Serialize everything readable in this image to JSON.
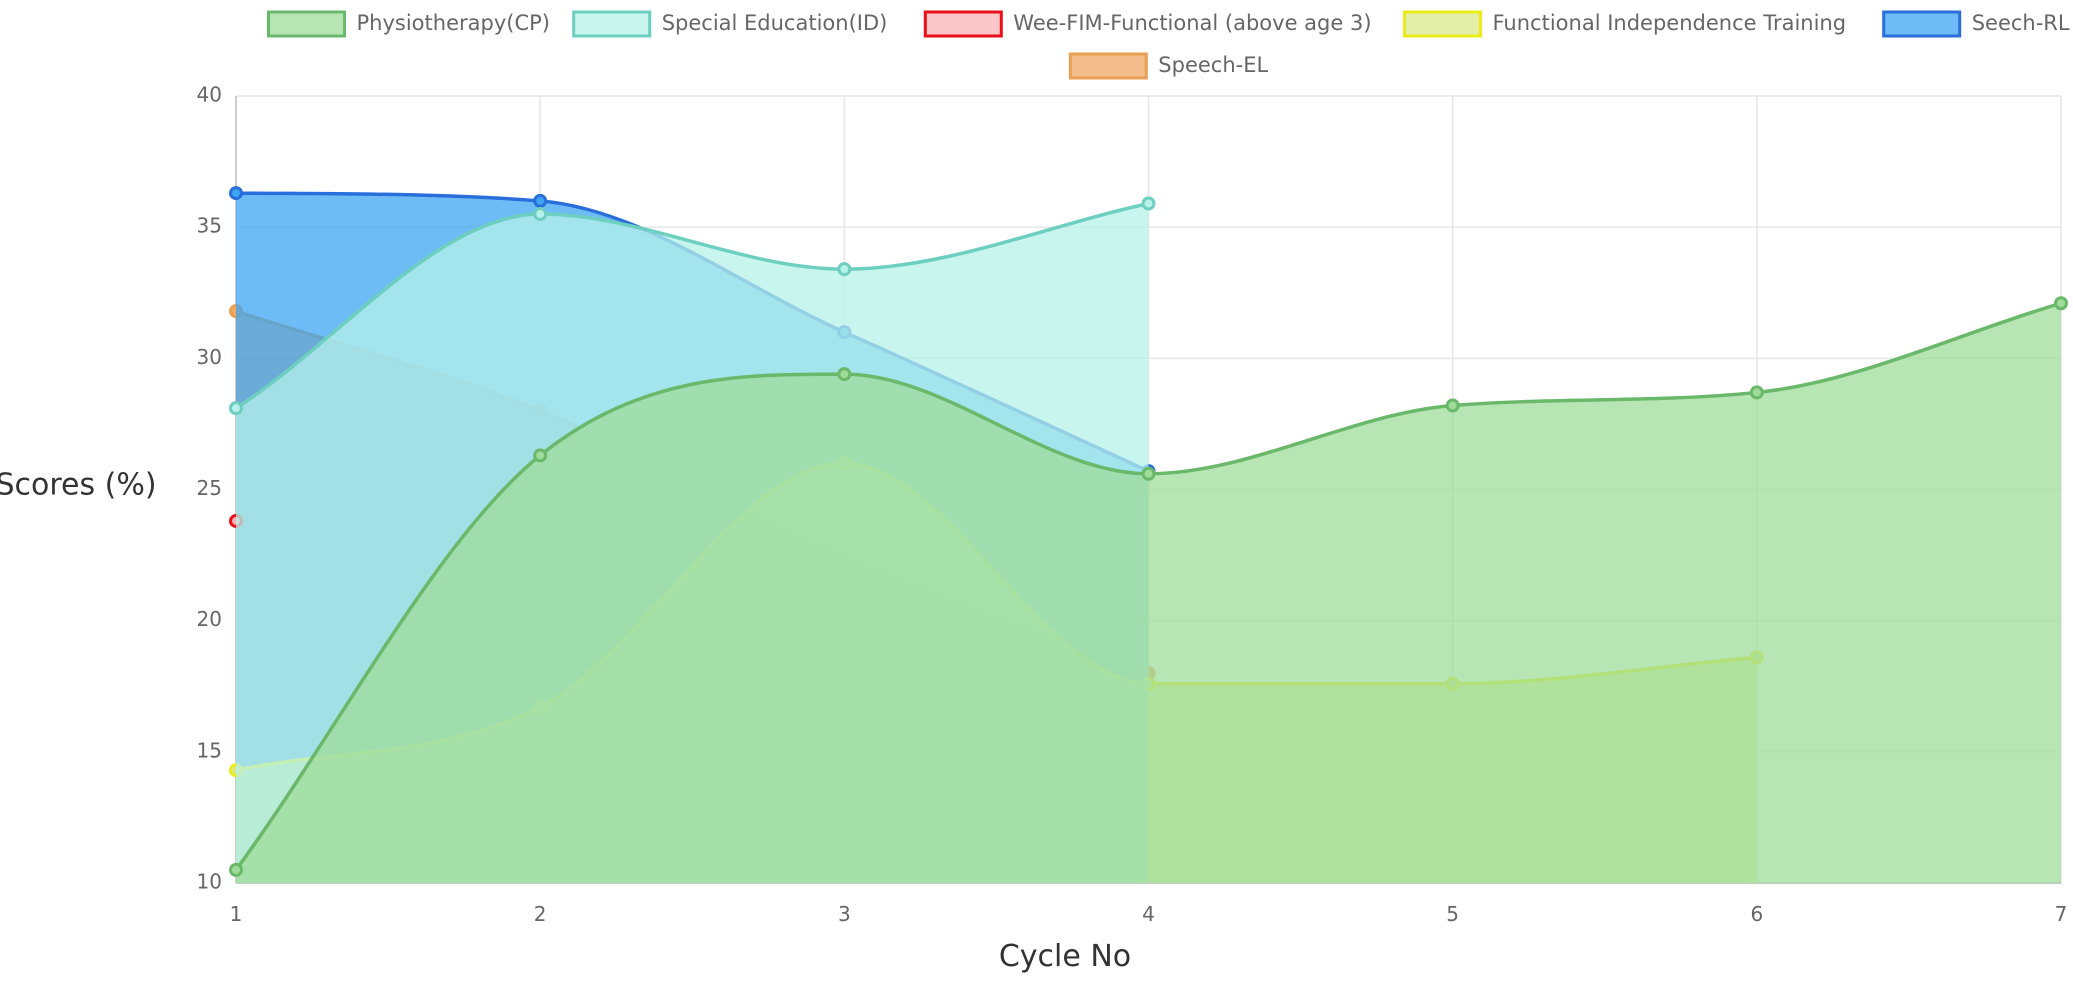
{
  "chart_data": {
    "type": "area",
    "xlabel": "Cycle No",
    "ylabel": "Scores (%)",
    "x": [
      1,
      2,
      3,
      4,
      5,
      6,
      7
    ],
    "xlim": [
      1,
      7
    ],
    "ylim": [
      10,
      40
    ],
    "yticks": [
      10,
      15,
      20,
      25,
      30,
      35,
      40
    ],
    "grid": true,
    "legend_position": "top",
    "series": [
      {
        "name": "Physiotherapy(CP)",
        "x": [
          1,
          2,
          3,
          4,
          5,
          6,
          7
        ],
        "values": [
          10.5,
          26.3,
          29.4,
          25.6,
          28.2,
          28.7,
          32.1
        ],
        "line_color": "#6ab86a",
        "fill_color": "#9fdc99"
      },
      {
        "name": "Special Education(ID)",
        "x": [
          1,
          2,
          3,
          4
        ],
        "values": [
          28.1,
          35.5,
          33.4,
          35.9
        ],
        "line_color": "#6dcfc0",
        "fill_color": "#b7f2ea"
      },
      {
        "name": "Wee-FIM-Functional (above age 3)",
        "x": [
          1
        ],
        "values": [
          23.8
        ],
        "line_color": "#e8101a",
        "fill_color": "#f7b4b4"
      },
      {
        "name": "Functional Independence Training",
        "x": [
          1,
          2,
          3,
          4,
          5,
          6
        ],
        "values": [
          14.3,
          16.7,
          26.0,
          17.6,
          17.6,
          18.6
        ],
        "line_color": "#ecec1a",
        "fill_color": "#d9e88a"
      },
      {
        "name": "Seech-RL",
        "x": [
          1,
          2,
          3,
          4
        ],
        "values": [
          36.3,
          36.0,
          31.0,
          25.7
        ],
        "line_color": "#2a6edb",
        "fill_color": "#3ca6f2"
      },
      {
        "name": "Speech-EL",
        "x": [
          1,
          2,
          3,
          4
        ],
        "values": [
          31.8,
          28.0,
          22.5,
          18.0
        ],
        "line_color": "#e8a054",
        "fill_color": "#eea764"
      }
    ]
  }
}
